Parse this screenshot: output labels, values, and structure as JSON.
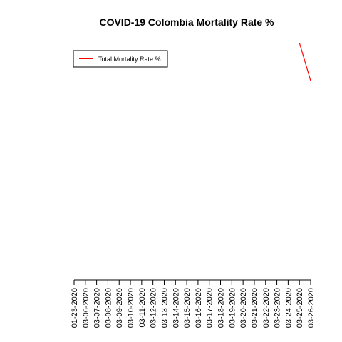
{
  "chart_data": {
    "type": "line",
    "title": "COVID-19 Colombia Mortality Rate %",
    "xlabel": "",
    "ylabel": "",
    "categories": [
      "01-23-2020",
      "03-06-2020",
      "03-07-2020",
      "03-08-2020",
      "03-09-2020",
      "03-10-2020",
      "03-11-2020",
      "03-12-2020",
      "03-13-2020",
      "03-14-2020",
      "03-15-2020",
      "03-16-2020",
      "03-17-2020",
      "03-18-2020",
      "03-19-2020",
      "03-20-2020",
      "03-21-2020",
      "03-22-2020",
      "03-23-2020",
      "03-24-2020",
      "03-25-2020",
      "03-26-2020"
    ],
    "series": [
      {
        "name": "Total Mortality Rate %",
        "color": "#ff0000",
        "values": [
          null,
          null,
          null,
          null,
          null,
          null,
          null,
          null,
          null,
          null,
          null,
          null,
          null,
          null,
          null,
          null,
          null,
          null,
          null,
          null,
          1.2,
          1.0
        ]
      }
    ],
    "ylim": [
      0,
      1.2
    ],
    "grid": false,
    "legend_position": "top-left"
  }
}
